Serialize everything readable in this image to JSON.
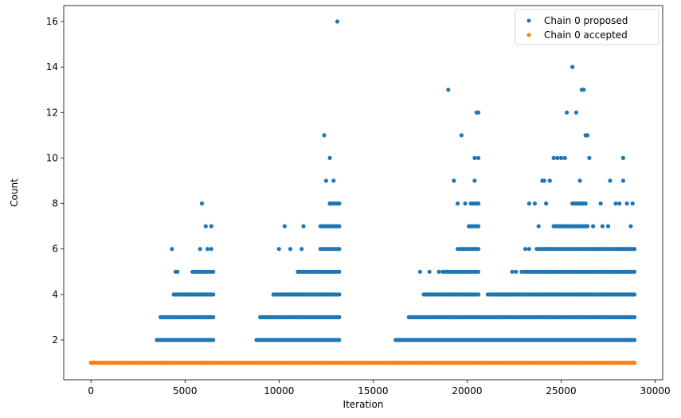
{
  "chart_data": {
    "type": "scatter",
    "title": "",
    "xlabel": "Iteration",
    "ylabel": "Count",
    "xlim": [
      -1450,
      30400
    ],
    "ylim": [
      0.25,
      16.7
    ],
    "xticks": [
      0,
      5000,
      10000,
      15000,
      20000,
      25000,
      30000
    ],
    "yticks": [
      2,
      4,
      6,
      8,
      10,
      12,
      14,
      16
    ],
    "grid": false,
    "legend_position": "top-right",
    "iterations_max": 28900,
    "series": [
      {
        "name": "Chain 0 proposed",
        "color": "#1f77b4",
        "bands": [
          {
            "y": 2,
            "ranges": [
              [
                3500,
                6500
              ],
              [
                8800,
                13200
              ],
              [
                16200,
                28900
              ]
            ]
          },
          {
            "y": 3,
            "ranges": [
              [
                3700,
                6500
              ],
              [
                9000,
                13200
              ],
              [
                16900,
                28900
              ]
            ]
          },
          {
            "y": 4,
            "ranges": [
              [
                4400,
                6500
              ],
              [
                9700,
                13200
              ],
              [
                17700,
                20600
              ],
              [
                21100,
                28900
              ]
            ]
          },
          {
            "y": 5,
            "ranges": [
              [
                5400,
                6500
              ],
              [
                11000,
                13200
              ],
              [
                18700,
                20600
              ],
              [
                22900,
                28900
              ]
            ]
          },
          {
            "y": 6,
            "ranges": [
              [
                12200,
                13200
              ],
              [
                19500,
                20600
              ],
              [
                23700,
                28900
              ]
            ]
          },
          {
            "y": 7,
            "ranges": [
              [
                12300,
                13200
              ],
              [
                20100,
                20600
              ],
              [
                24600,
                26400
              ]
            ]
          },
          {
            "y": 8,
            "ranges": [
              [
                12700,
                13200
              ],
              [
                20300,
                20600
              ],
              [
                25600,
                26300
              ]
            ]
          }
        ],
        "points": [
          [
            4300,
            6
          ],
          [
            4500,
            5
          ],
          [
            4600,
            5
          ],
          [
            5000,
            4
          ],
          [
            5500,
            5
          ],
          [
            5800,
            6
          ],
          [
            5900,
            8
          ],
          [
            6100,
            7
          ],
          [
            6200,
            6
          ],
          [
            6400,
            7
          ],
          [
            6400,
            6
          ],
          [
            10000,
            6
          ],
          [
            10300,
            7
          ],
          [
            10600,
            6
          ],
          [
            11000,
            5
          ],
          [
            11200,
            6
          ],
          [
            11300,
            7
          ],
          [
            11800,
            5
          ],
          [
            12200,
            7
          ],
          [
            12400,
            11
          ],
          [
            12500,
            9
          ],
          [
            12700,
            10
          ],
          [
            12700,
            8
          ],
          [
            12900,
            9
          ],
          [
            13100,
            16
          ],
          [
            13100,
            7
          ],
          [
            17500,
            5
          ],
          [
            18000,
            5
          ],
          [
            18500,
            5
          ],
          [
            19000,
            13
          ],
          [
            19300,
            9
          ],
          [
            19500,
            8
          ],
          [
            19700,
            11
          ],
          [
            19900,
            8
          ],
          [
            20100,
            7
          ],
          [
            20200,
            8
          ],
          [
            20400,
            10
          ],
          [
            20400,
            9
          ],
          [
            20500,
            12
          ],
          [
            20600,
            12
          ],
          [
            20600,
            10
          ],
          [
            21800,
            4
          ],
          [
            22100,
            4
          ],
          [
            22400,
            5
          ],
          [
            22600,
            5
          ],
          [
            23100,
            6
          ],
          [
            23300,
            6
          ],
          [
            23300,
            8
          ],
          [
            23600,
            8
          ],
          [
            23800,
            7
          ],
          [
            24000,
            9
          ],
          [
            24100,
            9
          ],
          [
            24200,
            8
          ],
          [
            24400,
            9
          ],
          [
            24600,
            10
          ],
          [
            24800,
            10
          ],
          [
            25000,
            10
          ],
          [
            25200,
            10
          ],
          [
            25300,
            12
          ],
          [
            25600,
            14
          ],
          [
            25800,
            12
          ],
          [
            26000,
            9
          ],
          [
            26100,
            13
          ],
          [
            26200,
            13
          ],
          [
            26300,
            11
          ],
          [
            26400,
            11
          ],
          [
            26500,
            10
          ],
          [
            26700,
            7
          ],
          [
            26900,
            6
          ],
          [
            27100,
            8
          ],
          [
            27200,
            7
          ],
          [
            27500,
            7
          ],
          [
            27600,
            9
          ],
          [
            27900,
            8
          ],
          [
            28000,
            6
          ],
          [
            28100,
            8
          ],
          [
            28300,
            9
          ],
          [
            28300,
            10
          ],
          [
            28500,
            8
          ],
          [
            28600,
            6
          ],
          [
            28700,
            7
          ],
          [
            28800,
            8
          ]
        ]
      },
      {
        "name": "Chain 0 accepted",
        "color": "#ff7f0e",
        "bands": [
          {
            "y": 1,
            "ranges": [
              [
                0,
                28900
              ]
            ]
          }
        ],
        "points": []
      }
    ]
  }
}
